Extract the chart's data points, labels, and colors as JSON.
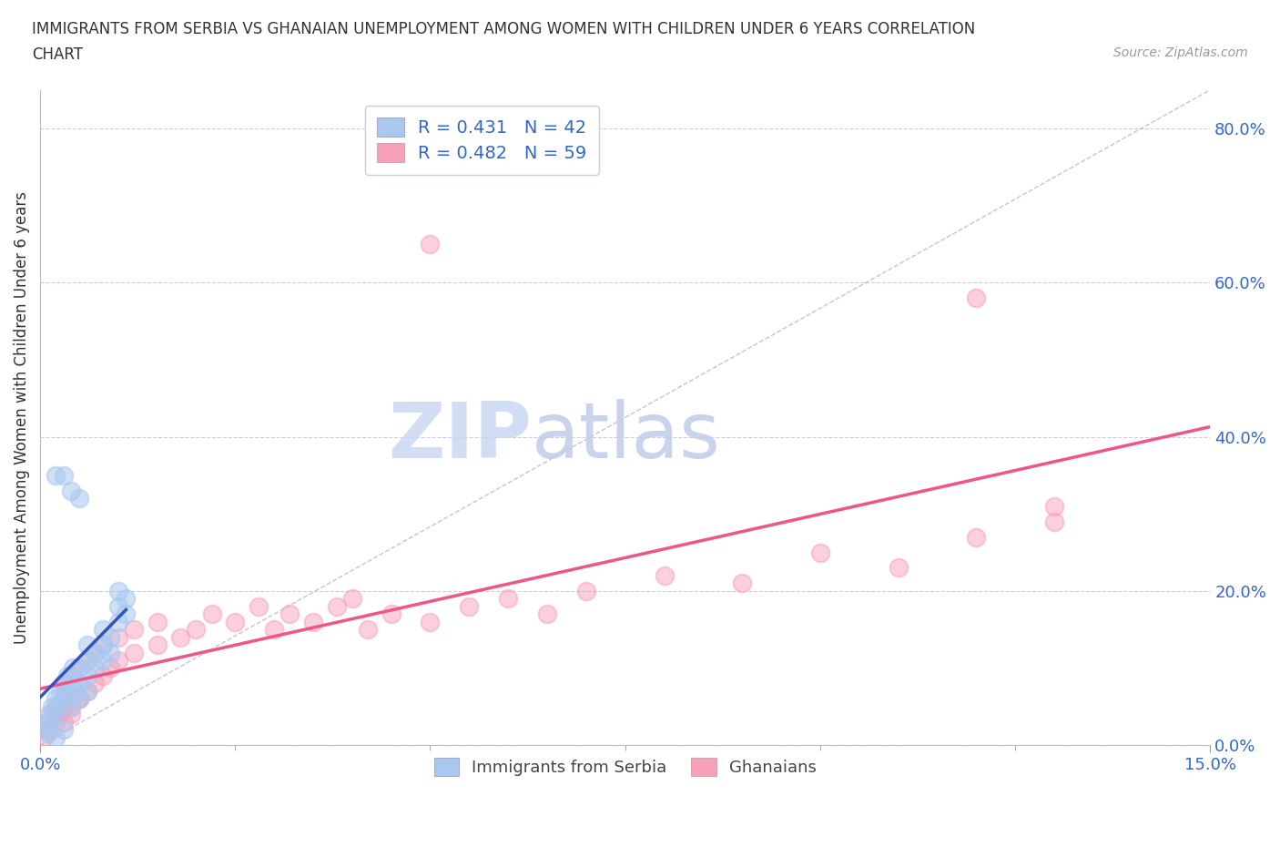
{
  "title_line1": "IMMIGRANTS FROM SERBIA VS GHANAIAN UNEMPLOYMENT AMONG WOMEN WITH CHILDREN UNDER 6 YEARS CORRELATION",
  "title_line2": "CHART",
  "source": "Source: ZipAtlas.com",
  "ylabel": "Unemployment Among Women with Children Under 6 years",
  "xmin": 0.0,
  "xmax": 0.15,
  "ymin": 0.0,
  "ymax": 0.85,
  "ytick_labels": [
    "0.0%",
    "20.0%",
    "40.0%",
    "60.0%",
    "80.0%"
  ],
  "ytick_values": [
    0.0,
    0.2,
    0.4,
    0.6,
    0.8
  ],
  "xtick_labels": [
    "0.0%",
    "15.0%"
  ],
  "xtick_values": [
    0.0,
    0.15
  ],
  "serbia_R": 0.431,
  "serbia_N": 42,
  "ghana_R": 0.482,
  "ghana_N": 59,
  "serbia_color": "#a8c8f0",
  "ghana_color": "#f8a0b8",
  "serbia_trend_color": "#3355bb",
  "ghana_trend_color": "#ee5588",
  "diagonal_color": "#b0b8cc",
  "watermark_color": "#ccd8ee",
  "legend_serbia_label": "Immigrants from Serbia",
  "legend_ghana_label": "Ghanaians",
  "serbia_x": [
    0.0005,
    0.001,
    0.0012,
    0.0015,
    0.0018,
    0.002,
    0.0022,
    0.0025,
    0.003,
    0.003,
    0.0032,
    0.0035,
    0.004,
    0.004,
    0.0042,
    0.0045,
    0.005,
    0.005,
    0.005,
    0.006,
    0.006,
    0.006,
    0.006,
    0.007,
    0.007,
    0.008,
    0.008,
    0.008,
    0.009,
    0.009,
    0.01,
    0.01,
    0.01,
    0.011,
    0.011,
    0.002,
    0.003,
    0.004,
    0.005,
    0.001,
    0.002,
    0.003
  ],
  "serbia_y": [
    0.02,
    0.03,
    0.04,
    0.05,
    0.04,
    0.06,
    0.05,
    0.07,
    0.06,
    0.08,
    0.07,
    0.09,
    0.05,
    0.08,
    0.1,
    0.07,
    0.06,
    0.08,
    0.1,
    0.07,
    0.09,
    0.11,
    0.13,
    0.1,
    0.12,
    0.11,
    0.13,
    0.15,
    0.12,
    0.14,
    0.16,
    0.18,
    0.2,
    0.17,
    0.19,
    0.35,
    0.35,
    0.33,
    0.32,
    0.015,
    0.01,
    0.02
  ],
  "ghana_x": [
    0.0005,
    0.001,
    0.001,
    0.0015,
    0.002,
    0.002,
    0.0025,
    0.003,
    0.003,
    0.0035,
    0.004,
    0.004,
    0.005,
    0.005,
    0.006,
    0.006,
    0.007,
    0.007,
    0.008,
    0.008,
    0.009,
    0.01,
    0.01,
    0.012,
    0.012,
    0.015,
    0.015,
    0.018,
    0.02,
    0.022,
    0.025,
    0.028,
    0.03,
    0.032,
    0.035,
    0.038,
    0.04,
    0.042,
    0.045,
    0.05,
    0.055,
    0.06,
    0.065,
    0.07,
    0.08,
    0.09,
    0.1,
    0.11,
    0.12,
    0.13,
    0.13,
    0.001,
    0.002,
    0.003,
    0.003,
    0.004,
    0.005,
    0.05,
    0.12
  ],
  "ghana_y": [
    0.01,
    0.02,
    0.03,
    0.04,
    0.03,
    0.05,
    0.04,
    0.06,
    0.08,
    0.07,
    0.05,
    0.09,
    0.06,
    0.1,
    0.07,
    0.11,
    0.08,
    0.12,
    0.09,
    0.13,
    0.1,
    0.11,
    0.14,
    0.12,
    0.15,
    0.13,
    0.16,
    0.14,
    0.15,
    0.17,
    0.16,
    0.18,
    0.15,
    0.17,
    0.16,
    0.18,
    0.19,
    0.15,
    0.17,
    0.16,
    0.18,
    0.19,
    0.17,
    0.2,
    0.22,
    0.21,
    0.25,
    0.23,
    0.27,
    0.29,
    0.31,
    0.02,
    0.04,
    0.03,
    0.05,
    0.04,
    0.06,
    0.65,
    0.58
  ]
}
